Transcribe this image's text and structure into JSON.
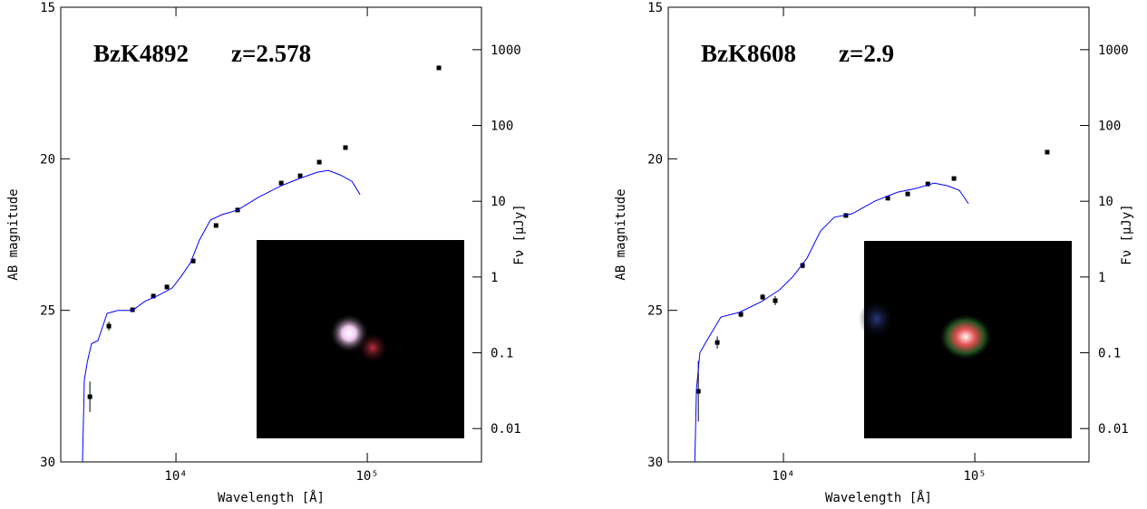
{
  "chart_data": [
    {
      "type": "scatter",
      "label": "BzK4892",
      "redshift": "z=2.578",
      "xlabel": "Wavelength [Å]",
      "ylabel": "AB magnitude",
      "y2label": "Fν [μJy]",
      "xlog": true,
      "xlim": [
        2500,
        395000
      ],
      "xticks": [
        {
          "value": 10000,
          "label": "10⁴"
        },
        {
          "value": 100000,
          "label": "10⁵"
        }
      ],
      "ylim": [
        15,
        30
      ],
      "yticks": [
        15,
        20,
        25,
        30
      ],
      "y2log": true,
      "y2lim": [
        3631,
        0.00363
      ],
      "y2ticks": [
        1000,
        100,
        10,
        1,
        0.1,
        0.01
      ],
      "series": [
        {
          "color": "#000000",
          "marker": "square",
          "x": [
            3550,
            4460,
            5930,
            7620,
            8970,
            12300,
            16200,
            21000,
            35500,
            44600,
            56100,
            76900,
            236600
          ],
          "values": [
            27.85,
            25.52,
            24.98,
            24.53,
            24.23,
            23.37,
            22.2,
            21.69,
            20.8,
            20.56,
            20.11,
            19.63,
            17.0
          ],
          "errors": [
            0.5,
            0.15,
            0.06,
            0.08,
            0.08,
            0.08,
            0.05,
            0.05,
            0.05,
            0.05,
            0.05,
            0.05,
            0.05
          ]
        },
        {
          "color": "#0000ff",
          "line": true,
          "x": [
            3250,
            3320,
            3440,
            3620,
            3910,
            4365,
            4980,
            5930,
            6900,
            8130,
            9570,
            10670,
            11910,
            13270,
            15140,
            17460,
            20990,
            26980,
            35480,
            44160,
            54830,
            62520,
            72110,
            82990,
            91620
          ],
          "values": [
            30,
            27.3,
            26.7,
            26.1,
            26.0,
            25.1,
            25.0,
            25.0,
            24.7,
            24.5,
            24.26,
            23.87,
            23.43,
            22.68,
            22.02,
            21.84,
            21.69,
            21.27,
            20.89,
            20.65,
            20.44,
            20.38,
            20.53,
            20.74,
            21.18
          ]
        }
      ]
    },
    {
      "type": "scatter",
      "label": "BzK8608",
      "redshift": "z=2.9",
      "xlabel": "Wavelength [Å]",
      "ylabel": "AB magnitude",
      "y2label": "Fν [μJy]",
      "xlog": true,
      "xlim": [
        2500,
        395000
      ],
      "xticks": [
        {
          "value": 10000,
          "label": "10⁴"
        },
        {
          "value": 100000,
          "label": "10⁵"
        }
      ],
      "ylim": [
        15,
        30
      ],
      "yticks": [
        15,
        20,
        25,
        30
      ],
      "y2log": true,
      "y2lim": [
        3631,
        0.00363
      ],
      "y2ticks": [
        1000,
        100,
        10,
        1,
        0.1,
        0.01
      ],
      "series": [
        {
          "color": "#000000",
          "marker": "square",
          "x": [
            3590,
            4510,
            5990,
            7780,
            9060,
            12580,
            21200,
            35100,
            44600,
            56800,
            77800,
            239000
          ],
          "values": [
            27.67,
            26.06,
            25.13,
            24.56,
            24.68,
            23.52,
            21.87,
            21.3,
            21.16,
            20.83,
            20.65,
            19.78
          ],
          "errors": [
            1.0,
            0.2,
            0.1,
            0.1,
            0.15,
            0.1,
            0.05,
            0.05,
            0.05,
            0.05,
            0.05,
            0.05
          ]
        },
        {
          "color": "#0000ff",
          "line": true,
          "x": [
            3440,
            3510,
            3660,
            4000,
            4710,
            5860,
            7690,
            9570,
            11270,
            13270,
            15630,
            18410,
            22910,
            30130,
            39540,
            49200,
            61240,
            72110,
            82990,
            92680
          ],
          "values": [
            30,
            27.6,
            26.4,
            25.97,
            25.22,
            25.07,
            24.71,
            24.32,
            23.87,
            23.28,
            22.38,
            21.93,
            21.81,
            21.39,
            21.1,
            20.98,
            20.8,
            20.89,
            21.04,
            21.48
          ]
        }
      ]
    }
  ]
}
